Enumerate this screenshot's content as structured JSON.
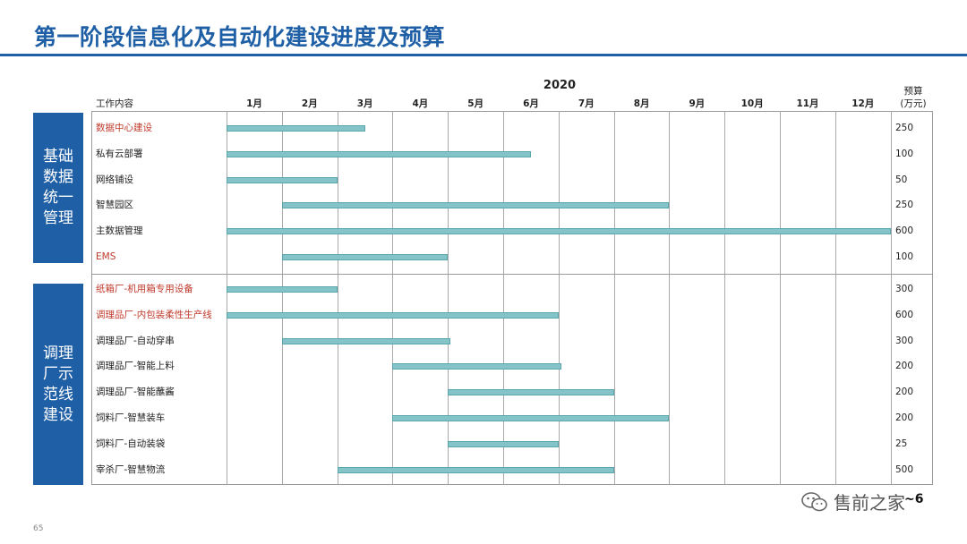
{
  "title": "第一阶段信息化及自动化建设进度及预算",
  "year": "2020",
  "header": {
    "task_col": "工作内容",
    "budget_line1": "预算",
    "budget_line2": "(万元)"
  },
  "months": [
    "1月",
    "2月",
    "3月",
    "4月",
    "5月",
    "6月",
    "7月",
    "8月",
    "9月",
    "10月",
    "11月",
    "12月"
  ],
  "groups": [
    {
      "label": "基础数据统一管理"
    },
    {
      "label": "调理厂示范线建设"
    }
  ],
  "tasks": [
    {
      "name": "数据中心建设",
      "red": true,
      "start": 0,
      "end": 2.5,
      "budget": "250"
    },
    {
      "name": "私有云部署",
      "red": false,
      "start": 0,
      "end": 5.5,
      "budget": "100"
    },
    {
      "name": "网络铺设",
      "red": false,
      "start": 0,
      "end": 2,
      "budget": "50"
    },
    {
      "name": "智慧园区",
      "red": false,
      "start": 1,
      "end": 8,
      "budget": "250"
    },
    {
      "name": "主数据管理",
      "red": false,
      "start": 0,
      "end": 12,
      "budget": "600"
    },
    {
      "name": "EMS",
      "red": true,
      "start": 1,
      "end": 4,
      "budget": "100"
    },
    {
      "name": "纸箱厂-机用箱专用设备",
      "red": true,
      "start": 0,
      "end": 2,
      "budget": "300"
    },
    {
      "name": "调理品厂-内包装柔性生产线",
      "red": true,
      "start": 0,
      "end": 6,
      "budget": "600"
    },
    {
      "name": "调理品厂-自动穿串",
      "red": false,
      "start": 1,
      "end": 4.05,
      "budget": "300"
    },
    {
      "name": "调理品厂-智能上料",
      "red": false,
      "start": 3,
      "end": 6.05,
      "budget": "200"
    },
    {
      "name": "调理品厂-智能蘸酱",
      "red": false,
      "start": 4,
      "end": 7,
      "budget": "200"
    },
    {
      "name": "饲料厂-智慧装车",
      "red": false,
      "start": 3,
      "end": 8,
      "budget": "200"
    },
    {
      "name": "饲料厂-自动装袋",
      "red": false,
      "start": 4,
      "end": 6,
      "budget": "25"
    },
    {
      "name": "宰杀厂-智慧物流",
      "red": false,
      "start": 2,
      "end": 7,
      "budget": "500"
    }
  ],
  "total": "~6",
  "page_number": "65",
  "watermark": "售前之家"
}
